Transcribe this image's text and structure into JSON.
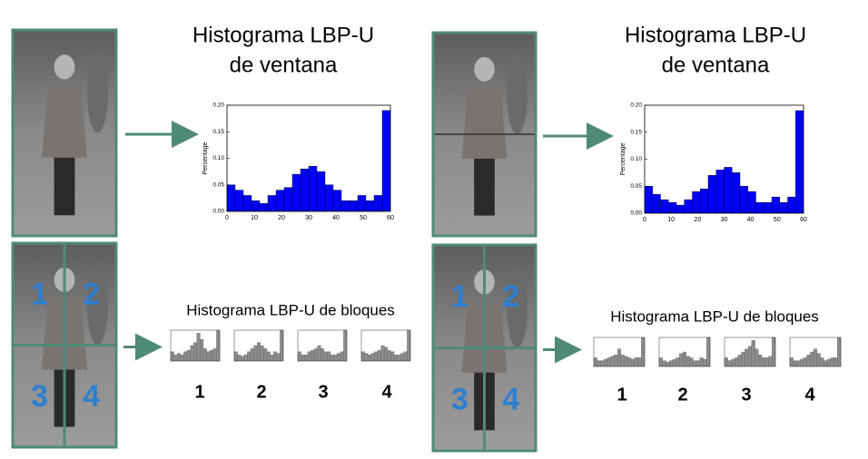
{
  "panels": [
    {
      "title_lines": [
        "Histograma LBP-U",
        "de ventana"
      ],
      "histogram": {
        "ylabel": "Percentage",
        "color": "#0000ff",
        "bins": [
          0,
          3,
          6,
          9,
          12,
          15,
          18,
          21,
          24,
          27,
          30,
          33,
          36,
          39,
          42,
          45,
          48,
          51,
          54,
          57,
          60
        ],
        "values": [
          0.05,
          0.04,
          0.03,
          0.02,
          0.015,
          0.03,
          0.04,
          0.045,
          0.07,
          0.08,
          0.085,
          0.075,
          0.05,
          0.04,
          0.02,
          0.02,
          0.03,
          0.02,
          0.03,
          0.19
        ],
        "xlim": [
          0,
          60
        ],
        "xticks": [
          0,
          10,
          20,
          30,
          40,
          50,
          60
        ],
        "ylim": [
          0,
          0.2
        ],
        "yticks": [
          {
            "value": 0,
            "label": "0.00"
          },
          0.05,
          {
            "value": 0.1,
            "label": "0.10"
          },
          0.15,
          {
            "value": 0.2,
            "label": "0.20"
          }
        ]
      },
      "block_labels": [
        "1",
        "2",
        "3",
        "4"
      ],
      "block_title": "Histograma LBP-U de bloques",
      "block_histograms": [
        {
          "values": [
            0.3,
            0.2,
            0.25,
            0.2,
            0.3,
            0.35,
            0.5,
            0.6,
            0.9,
            0.7,
            0.4,
            0.3,
            0.35,
            0.4,
            1.0
          ]
        },
        {
          "values": [
            0.3,
            0.2,
            0.15,
            0.2,
            0.3,
            0.4,
            0.5,
            0.6,
            0.5,
            0.4,
            0.3,
            0.2,
            0.3,
            0.25,
            1.0
          ]
        },
        {
          "values": [
            0.3,
            0.2,
            0.2,
            0.3,
            0.35,
            0.4,
            0.5,
            0.4,
            0.3,
            0.3,
            0.2,
            0.2,
            0.25,
            0.3,
            1.0
          ]
        },
        {
          "values": [
            0.3,
            0.25,
            0.2,
            0.25,
            0.3,
            0.35,
            0.5,
            0.45,
            0.35,
            0.3,
            0.2,
            0.2,
            0.25,
            0.3,
            1.0
          ]
        }
      ],
      "block_captions": [
        "1",
        "2",
        "3",
        "4"
      ]
    },
    {
      "title_lines": [
        "Histograma LBP-U",
        "de ventana"
      ],
      "histogram": {
        "ylabel": "Percentage",
        "color": "#0000ff",
        "bins": [
          0,
          3,
          6,
          9,
          12,
          15,
          18,
          21,
          24,
          27,
          30,
          33,
          36,
          39,
          42,
          45,
          48,
          51,
          54,
          57,
          60
        ],
        "values": [
          0.05,
          0.035,
          0.025,
          0.02,
          0.015,
          0.025,
          0.04,
          0.045,
          0.07,
          0.08,
          0.085,
          0.075,
          0.05,
          0.04,
          0.02,
          0.02,
          0.03,
          0.02,
          0.03,
          0.19
        ],
        "xlim": [
          0,
          60
        ],
        "xticks": [
          0,
          10,
          20,
          30,
          40,
          50,
          60
        ],
        "ylim": [
          0,
          0.2
        ],
        "yticks": [
          {
            "value": 0,
            "label": "0.00"
          },
          0.05,
          {
            "value": 0.1,
            "label": "0.10"
          },
          0.15,
          {
            "value": 0.2,
            "label": "0.20"
          }
        ]
      },
      "block_labels": [
        "1",
        "2",
        "3",
        "4"
      ],
      "block_title": "Histograma LBP-U de bloques",
      "block_histograms": [
        {
          "values": [
            0.3,
            0.2,
            0.2,
            0.25,
            0.3,
            0.35,
            0.4,
            0.6,
            0.4,
            0.35,
            0.3,
            0.25,
            0.3,
            0.3,
            1.0
          ]
        },
        {
          "values": [
            0.3,
            0.2,
            0.15,
            0.2,
            0.25,
            0.3,
            0.45,
            0.5,
            0.35,
            0.3,
            0.2,
            0.2,
            0.3,
            0.25,
            1.0
          ]
        },
        {
          "values": [
            0.3,
            0.2,
            0.25,
            0.3,
            0.4,
            0.5,
            0.6,
            0.7,
            0.9,
            0.6,
            0.4,
            0.3,
            0.3,
            0.35,
            1.0
          ]
        },
        {
          "values": [
            0.3,
            0.2,
            0.2,
            0.25,
            0.3,
            0.4,
            0.5,
            0.6,
            0.45,
            0.3,
            0.2,
            0.25,
            0.3,
            0.3,
            1.0
          ]
        }
      ],
      "block_captions": [
        "1",
        "2",
        "3",
        "4"
      ]
    }
  ]
}
